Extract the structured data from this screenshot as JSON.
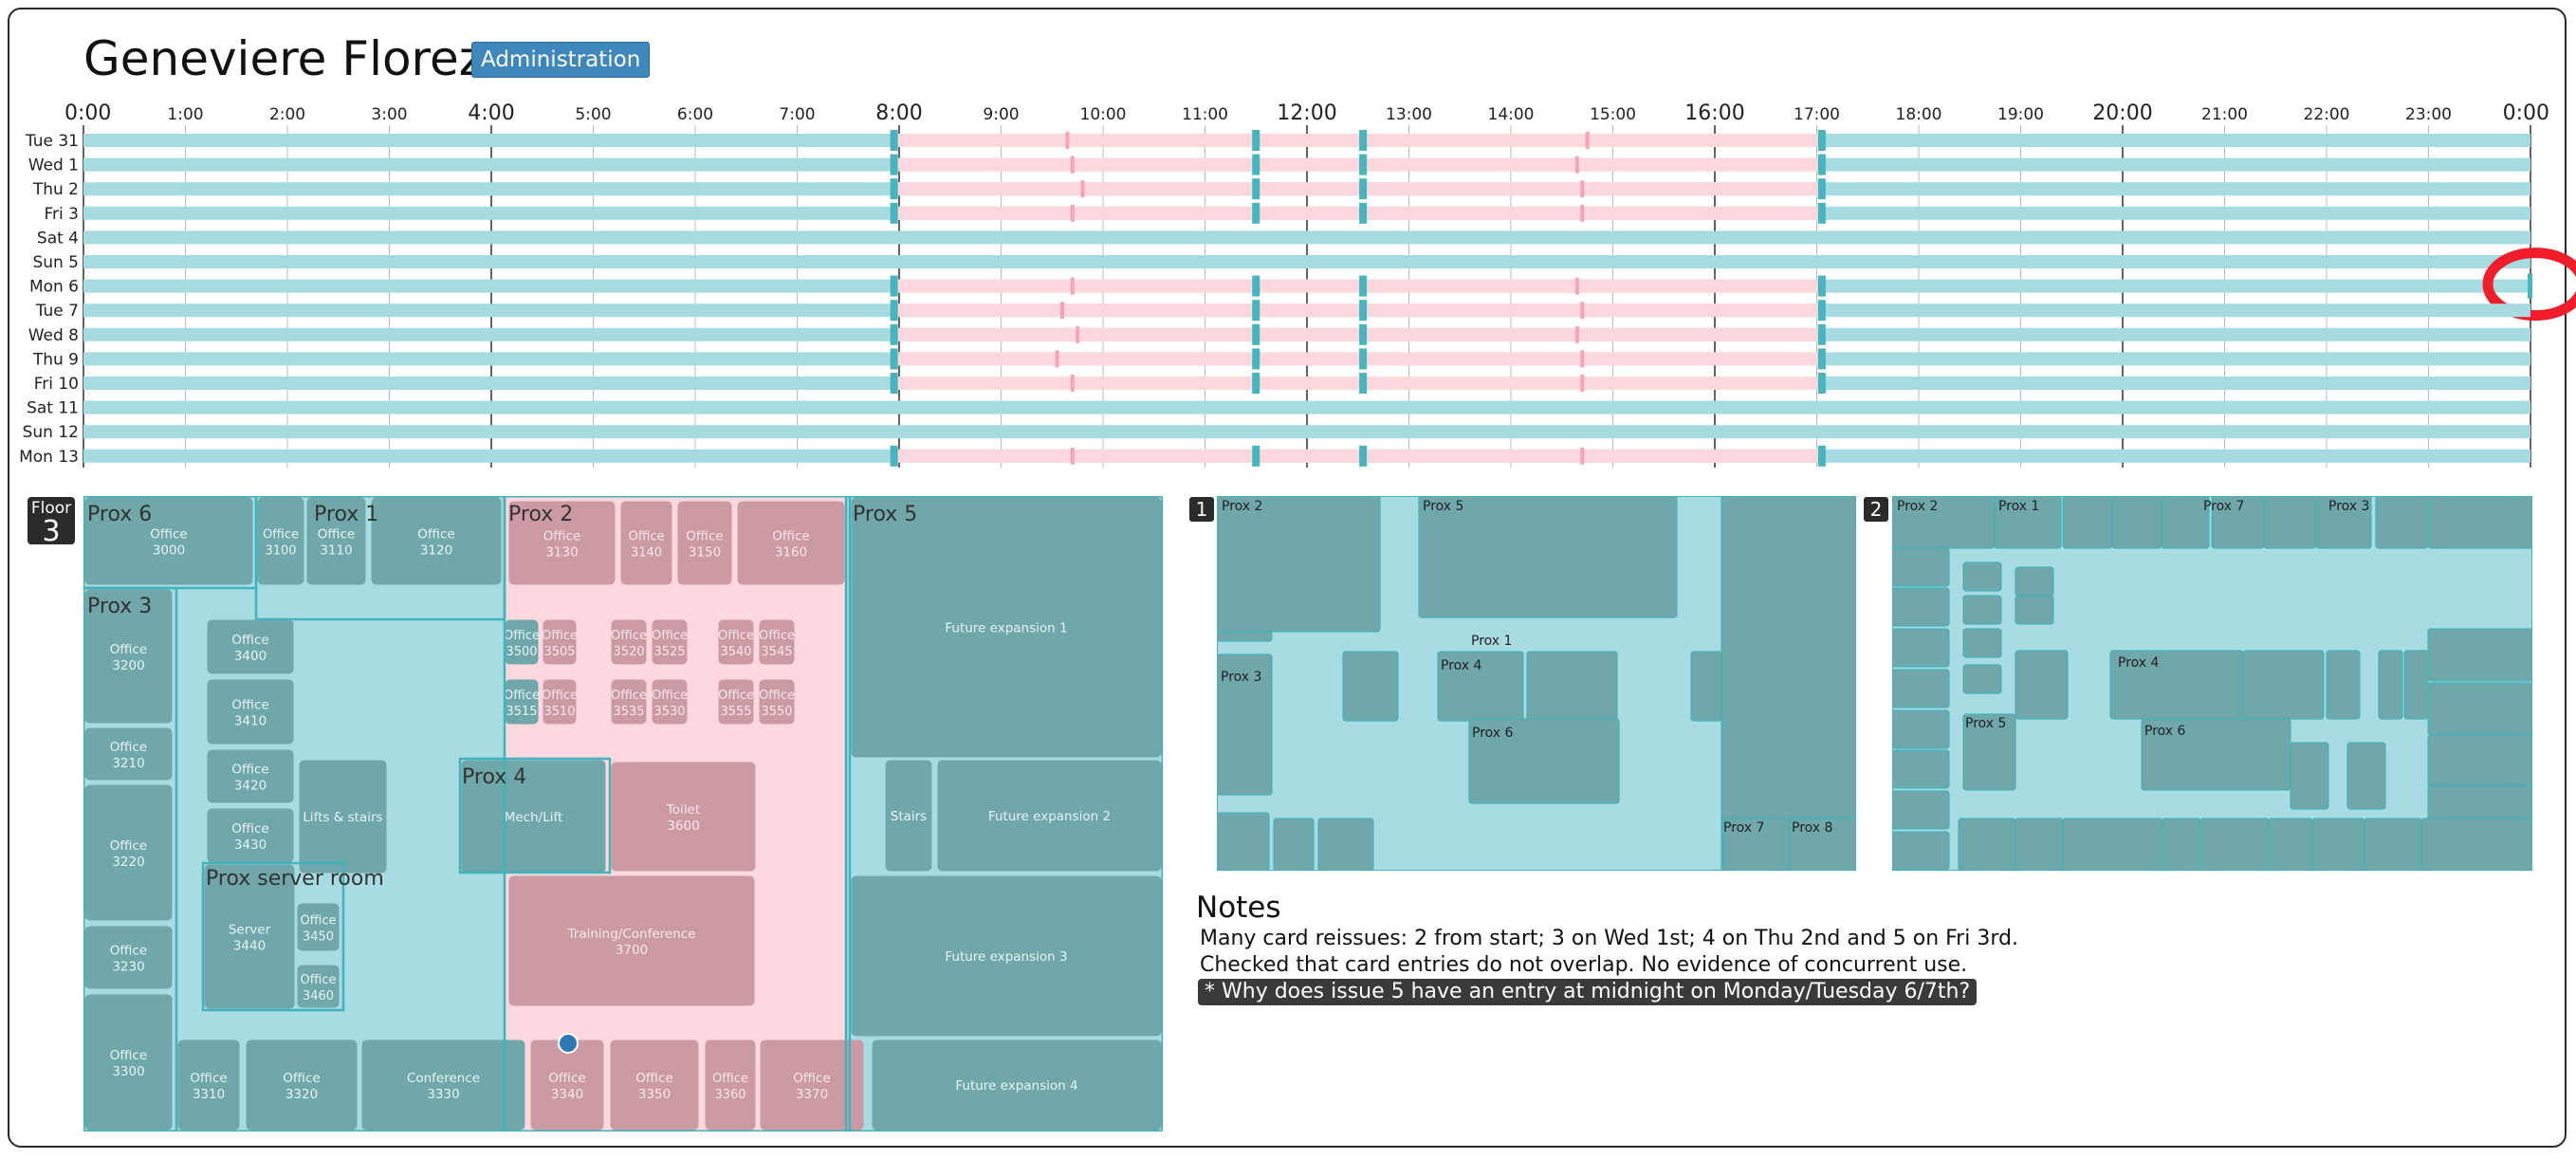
{
  "person": {
    "name": "Geneviere Florez",
    "department": "Administration"
  },
  "timeline": {
    "hour_labels": [
      "0:00",
      "1:00",
      "2:00",
      "3:00",
      "4:00",
      "5:00",
      "6:00",
      "7:00",
      "8:00",
      "9:00",
      "10:00",
      "11:00",
      "12:00",
      "13:00",
      "14:00",
      "15:00",
      "16:00",
      "17:00",
      "18:00",
      "19:00",
      "20:00",
      "21:00",
      "22:00",
      "23:00",
      "0:00"
    ],
    "days": [
      {
        "label": "Tue 31",
        "work": true,
        "ticks": [
          9.65,
          14.75
        ]
      },
      {
        "label": "Wed 1",
        "work": true,
        "ticks": [
          9.7,
          14.65
        ]
      },
      {
        "label": "Thu 2",
        "work": true,
        "ticks": [
          9.8,
          14.7
        ]
      },
      {
        "label": "Fri 3",
        "work": true,
        "ticks": [
          9.7,
          14.7
        ]
      },
      {
        "label": "Sat 4",
        "work": false,
        "ticks": []
      },
      {
        "label": "Sun 5",
        "work": false,
        "ticks": []
      },
      {
        "label": "Mon 6",
        "work": true,
        "ticks": [
          9.7,
          14.65
        ]
      },
      {
        "label": "Tue 7",
        "work": true,
        "ticks": [
          9.6,
          14.7
        ]
      },
      {
        "label": "Wed 8",
        "work": true,
        "ticks": [
          9.75,
          14.65
        ]
      },
      {
        "label": "Thu 9",
        "work": true,
        "ticks": [
          9.55,
          14.7
        ]
      },
      {
        "label": "Fri 10",
        "work": true,
        "ticks": [
          9.7,
          14.7
        ]
      },
      {
        "label": "Sat 11",
        "work": false,
        "ticks": []
      },
      {
        "label": "Sun 12",
        "work": false,
        "ticks": []
      },
      {
        "label": "Mon 13",
        "work": true,
        "ticks": [
          9.7,
          14.7
        ]
      }
    ],
    "work_start": 7.95,
    "lunch_start": 11.5,
    "lunch_end": 12.55,
    "work_end": 17.05,
    "midnight_marker_day": "Mon 6",
    "colors": {
      "outside": "#a6dbe2",
      "inside": "#fcd7dd",
      "mark": "#47b5bd",
      "tick": "#f4a6b5",
      "highlight": "#f21d2a"
    }
  },
  "floor_tag": {
    "label": "Floor",
    "number": "3"
  },
  "floorplan": {
    "zone_labels": [
      "Prox 6",
      "Prox 1",
      "Prox 2",
      "Prox 5",
      "Prox 3",
      "Prox 4",
      "Prox server room"
    ],
    "rooms": [
      {
        "name": "Office",
        "num": "3000"
      },
      {
        "name": "Office",
        "num": "3100"
      },
      {
        "name": "Office",
        "num": "3110"
      },
      {
        "name": "Office",
        "num": "3120"
      },
      {
        "name": "Office",
        "num": "3130"
      },
      {
        "name": "Office",
        "num": "3140"
      },
      {
        "name": "Office",
        "num": "3150"
      },
      {
        "name": "Office",
        "num": "3160"
      },
      {
        "name": "Office",
        "num": "3200"
      },
      {
        "name": "Office",
        "num": "3210"
      },
      {
        "name": "Office",
        "num": "3220"
      },
      {
        "name": "Office",
        "num": "3230"
      },
      {
        "name": "Office",
        "num": "3300"
      },
      {
        "name": "Office",
        "num": "3400"
      },
      {
        "name": "Office",
        "num": "3410"
      },
      {
        "name": "Office",
        "num": "3420"
      },
      {
        "name": "Office",
        "num": "3430"
      },
      {
        "name": "Lifts & stairs",
        "num": ""
      },
      {
        "name": "Server",
        "num": "3440"
      },
      {
        "name": "Office",
        "num": "3450"
      },
      {
        "name": "Office",
        "num": "3460"
      },
      {
        "name": "Office",
        "num": "3500"
      },
      {
        "name": "Office",
        "num": "3505"
      },
      {
        "name": "Office",
        "num": "3520"
      },
      {
        "name": "Office",
        "num": "3525"
      },
      {
        "name": "Office",
        "num": "3540"
      },
      {
        "name": "Office",
        "num": "3545"
      },
      {
        "name": "Office",
        "num": "3515"
      },
      {
        "name": "Office",
        "num": "3510"
      },
      {
        "name": "Office",
        "num": "3535"
      },
      {
        "name": "Office",
        "num": "3530"
      },
      {
        "name": "Office",
        "num": "3555"
      },
      {
        "name": "Office",
        "num": "3550"
      },
      {
        "name": "Mech/Lift",
        "num": ""
      },
      {
        "name": "Toilet",
        "num": "3600"
      },
      {
        "name": "Training/Conference",
        "num": "3700"
      },
      {
        "name": "Future expansion 1",
        "num": ""
      },
      {
        "name": "Stairs",
        "num": ""
      },
      {
        "name": "Future expansion 2",
        "num": ""
      },
      {
        "name": "Future expansion 3",
        "num": ""
      },
      {
        "name": "Future expansion 4",
        "num": ""
      },
      {
        "name": "Office",
        "num": "3310"
      },
      {
        "name": "Office",
        "num": "3320"
      },
      {
        "name": "Conference",
        "num": "3330"
      },
      {
        "name": "Office",
        "num": "3340"
      },
      {
        "name": "Office",
        "num": "3350"
      },
      {
        "name": "Office",
        "num": "3360"
      },
      {
        "name": "Office",
        "num": "3370"
      }
    ]
  },
  "mini1": {
    "tag": "1",
    "zone_labels": [
      "Prox 2",
      "Prox 5",
      "Prox 1",
      "Prox 3",
      "Prox 4",
      "Prox 6",
      "Prox 7",
      "Prox 8"
    ]
  },
  "mini2": {
    "tag": "2",
    "zone_labels": [
      "Prox 2",
      "Prox 1",
      "Prox 7",
      "Prox 3",
      "Prox 4",
      "Prox 5",
      "Prox 6"
    ]
  },
  "notes": {
    "title": "Notes",
    "lines": [
      "Many card reissues: 2 from start; 3 on Wed 1st; 4 on Thu 2nd and 5 on Fri 3rd.",
      "Checked that card entries do not overlap. No evidence of concurrent use."
    ],
    "highlight": "* Why does issue 5 have an entry at midnight on Monday/Tuesday 6/7th?"
  }
}
